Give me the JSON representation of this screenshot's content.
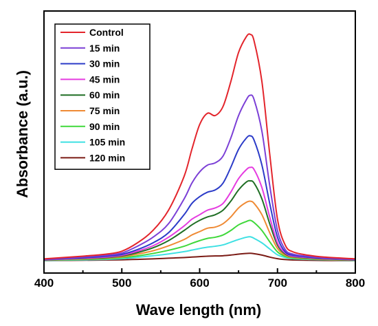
{
  "chart_data": {
    "type": "line",
    "title": "",
    "xlabel": "Wave length (nm)",
    "ylabel": "Absorbance (a.u.)",
    "xlim": [
      400,
      800
    ],
    "ylim": [
      0,
      1.05
    ],
    "xticks": [
      400,
      500,
      600,
      700,
      800
    ],
    "xtick_labels": [
      "400",
      "500",
      "600",
      "700",
      "800"
    ],
    "yticks_visible": false,
    "grid": false,
    "legend_position": "top-left",
    "x": [
      400,
      450,
      480,
      500,
      520,
      540,
      560,
      580,
      590,
      600,
      610,
      620,
      630,
      640,
      650,
      660,
      665,
      670,
      680,
      690,
      700,
      710,
      720,
      740,
      760,
      800
    ],
    "series": [
      {
        "name": "Control",
        "color": "#e3242b",
        "values": [
          0.014,
          0.026,
          0.035,
          0.048,
          0.085,
          0.14,
          0.23,
          0.38,
          0.5,
          0.61,
          0.66,
          0.65,
          0.69,
          0.8,
          0.93,
          1.0,
          1.01,
          0.98,
          0.8,
          0.48,
          0.19,
          0.075,
          0.045,
          0.03,
          0.022,
          0.014
        ]
      },
      {
        "name": "15 min",
        "color": "#7b3fd6",
        "values": [
          0.012,
          0.022,
          0.03,
          0.04,
          0.07,
          0.11,
          0.17,
          0.28,
          0.35,
          0.4,
          0.43,
          0.44,
          0.47,
          0.55,
          0.65,
          0.72,
          0.74,
          0.72,
          0.58,
          0.34,
          0.14,
          0.055,
          0.035,
          0.025,
          0.018,
          0.012
        ]
      },
      {
        "name": "30 min",
        "color": "#2b3bc8",
        "values": [
          0.011,
          0.019,
          0.026,
          0.034,
          0.055,
          0.085,
          0.13,
          0.21,
          0.26,
          0.29,
          0.31,
          0.32,
          0.35,
          0.42,
          0.5,
          0.55,
          0.56,
          0.54,
          0.43,
          0.26,
          0.11,
          0.045,
          0.03,
          0.022,
          0.016,
          0.011
        ]
      },
      {
        "name": "45 min",
        "color": "#e53be0",
        "values": [
          0.01,
          0.017,
          0.022,
          0.03,
          0.048,
          0.072,
          0.11,
          0.16,
          0.19,
          0.21,
          0.23,
          0.24,
          0.26,
          0.31,
          0.37,
          0.41,
          0.42,
          0.41,
          0.33,
          0.2,
          0.085,
          0.04,
          0.026,
          0.02,
          0.015,
          0.01
        ]
      },
      {
        "name": "60 min",
        "color": "#1f6e24",
        "values": [
          0.01,
          0.016,
          0.02,
          0.027,
          0.042,
          0.063,
          0.095,
          0.14,
          0.165,
          0.185,
          0.2,
          0.21,
          0.23,
          0.27,
          0.32,
          0.355,
          0.36,
          0.35,
          0.28,
          0.17,
          0.075,
          0.036,
          0.024,
          0.018,
          0.014,
          0.01
        ]
      },
      {
        "name": "75 min",
        "color": "#ef8a34",
        "values": [
          0.009,
          0.014,
          0.018,
          0.023,
          0.035,
          0.05,
          0.072,
          0.1,
          0.12,
          0.135,
          0.15,
          0.155,
          0.17,
          0.2,
          0.24,
          0.265,
          0.27,
          0.26,
          0.21,
          0.13,
          0.06,
          0.03,
          0.021,
          0.016,
          0.012,
          0.009
        ]
      },
      {
        "name": "90 min",
        "color": "#3fd83a",
        "values": [
          0.008,
          0.012,
          0.015,
          0.019,
          0.027,
          0.038,
          0.052,
          0.07,
          0.083,
          0.095,
          0.105,
          0.11,
          0.12,
          0.14,
          0.165,
          0.18,
          0.185,
          0.175,
          0.14,
          0.09,
          0.045,
          0.025,
          0.018,
          0.014,
          0.011,
          0.008
        ]
      },
      {
        "name": "105 min",
        "color": "#3ee0e3",
        "values": [
          0.007,
          0.01,
          0.012,
          0.015,
          0.021,
          0.028,
          0.036,
          0.046,
          0.053,
          0.06,
          0.066,
          0.07,
          0.076,
          0.088,
          0.1,
          0.11,
          0.112,
          0.105,
          0.085,
          0.058,
          0.032,
          0.02,
          0.015,
          0.012,
          0.01,
          0.007
        ]
      },
      {
        "name": "120 min",
        "color": "#7a1a14",
        "values": [
          0.006,
          0.008,
          0.009,
          0.01,
          0.012,
          0.014,
          0.017,
          0.02,
          0.022,
          0.024,
          0.026,
          0.027,
          0.028,
          0.031,
          0.035,
          0.038,
          0.039,
          0.037,
          0.031,
          0.022,
          0.015,
          0.011,
          0.009,
          0.008,
          0.007,
          0.006
        ]
      }
    ]
  }
}
